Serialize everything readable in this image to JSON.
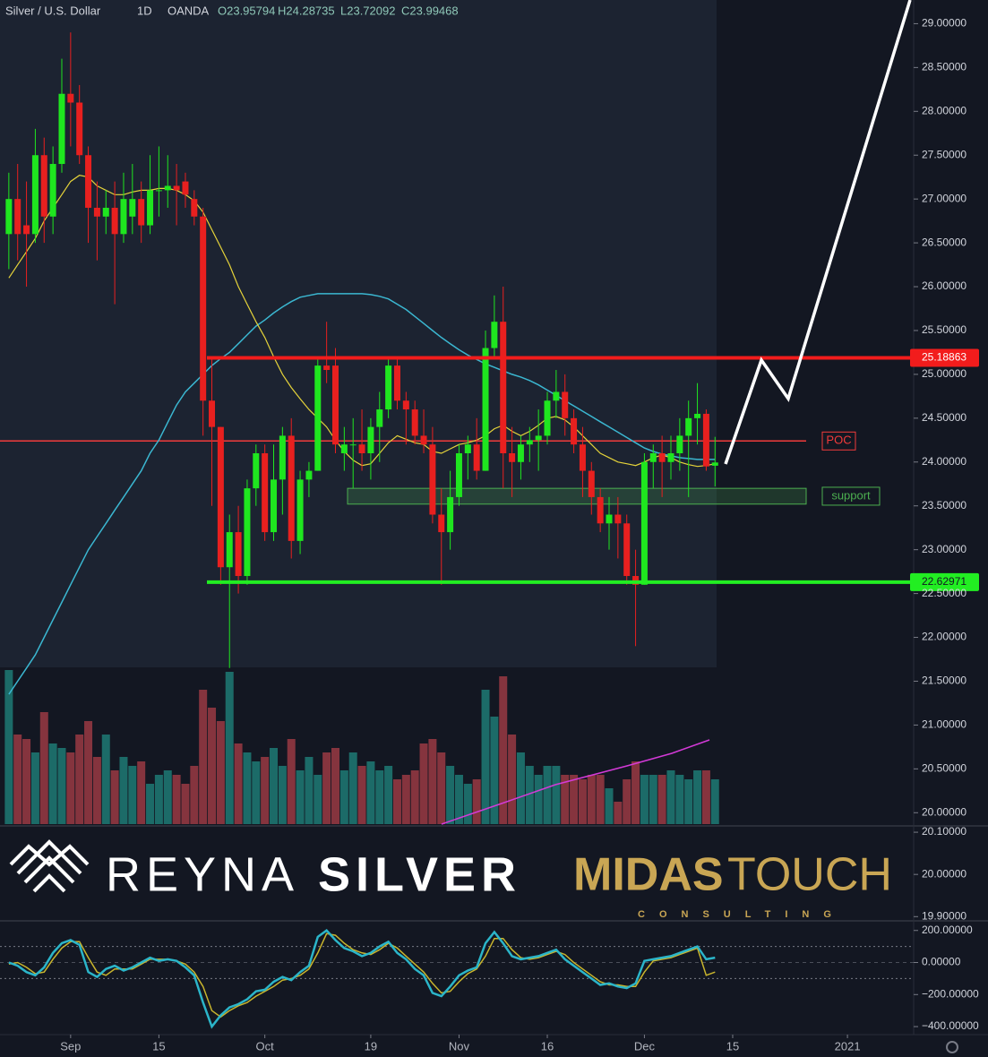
{
  "chart_data": {
    "type": "candlestick",
    "title": "Silver / U.S. Dollar",
    "interval": "1D",
    "source": "OANDA",
    "ohlc_legend": [
      "O23.95794",
      "H24.28735",
      "L23.72092",
      "C23.99468"
    ],
    "up_color": "#1fe61f",
    "down_color": "#e8201f",
    "xlim": [
      -1,
      102.5
    ],
    "xticks": [
      {
        "value": 7,
        "label": "Sep"
      },
      {
        "value": 17,
        "label": "15"
      },
      {
        "value": 29,
        "label": "Oct"
      },
      {
        "value": 41,
        "label": "19"
      },
      {
        "value": 51,
        "label": "Nov"
      },
      {
        "value": 61,
        "label": "16"
      },
      {
        "value": 72,
        "label": "Dec"
      },
      {
        "value": 82,
        "label": "15"
      },
      {
        "value": 95,
        "label": "2021"
      }
    ],
    "ylim": [
      19.87,
      29.27
    ],
    "yticks": [
      {
        "value": 20,
        "label": "20.00000"
      },
      {
        "value": 20.5,
        "label": "20.50000"
      },
      {
        "value": 21,
        "label": "21.00000"
      },
      {
        "value": 21.5,
        "label": "21.50000"
      },
      {
        "value": 22,
        "label": "22.00000"
      },
      {
        "value": 22.5,
        "label": "22.50000"
      },
      {
        "value": 23,
        "label": "23.00000"
      },
      {
        "value": 23.5,
        "label": "23.50000"
      },
      {
        "value": 24,
        "label": "24.00000"
      },
      {
        "value": 24.5,
        "label": "24.50000"
      },
      {
        "value": 25,
        "label": "25.00000"
      },
      {
        "value": 25.5,
        "label": "25.50000"
      },
      {
        "value": 26,
        "label": "26.00000"
      },
      {
        "value": 26.5,
        "label": "26.50000"
      },
      {
        "value": 27,
        "label": "27.00000"
      },
      {
        "value": 27.5,
        "label": "27.50000"
      },
      {
        "value": 28,
        "label": "28.00000"
      },
      {
        "value": 28.5,
        "label": "28.50000"
      },
      {
        "value": 29,
        "label": "29.00000"
      }
    ],
    "ohlc": [
      [
        26.6,
        27.3,
        26.2,
        27.0
      ],
      [
        27.0,
        27.4,
        26.3,
        26.6
      ],
      [
        26.7,
        27.2,
        26.0,
        26.6
      ],
      [
        26.6,
        27.8,
        26.5,
        27.5
      ],
      [
        27.5,
        27.7,
        26.5,
        26.8
      ],
      [
        26.8,
        27.6,
        26.6,
        27.4
      ],
      [
        27.4,
        28.6,
        27.3,
        28.2
      ],
      [
        28.2,
        28.9,
        27.6,
        28.1
      ],
      [
        28.1,
        28.3,
        27.4,
        27.5
      ],
      [
        27.5,
        27.6,
        26.5,
        26.9
      ],
      [
        26.9,
        27.2,
        26.3,
        26.8
      ],
      [
        26.8,
        27.1,
        26.6,
        26.9
      ],
      [
        26.9,
        27.2,
        25.8,
        26.6
      ],
      [
        26.6,
        27.3,
        26.5,
        27.0
      ],
      [
        26.8,
        27.4,
        26.6,
        27.0
      ],
      [
        27.0,
        27.2,
        26.5,
        26.7
      ],
      [
        26.7,
        27.5,
        26.6,
        27.1
      ],
      [
        27.1,
        27.6,
        26.8,
        27.1
      ],
      [
        27.1,
        27.5,
        26.9,
        27.15
      ],
      [
        27.15,
        27.4,
        26.7,
        27.1
      ],
      [
        27.2,
        27.3,
        26.9,
        27.05
      ],
      [
        27.0,
        27.1,
        26.7,
        26.8
      ],
      [
        26.8,
        26.9,
        24.3,
        24.7
      ],
      [
        24.7,
        25.2,
        23.5,
        24.4
      ],
      [
        24.4,
        24.4,
        22.6,
        22.8
      ],
      [
        22.8,
        23.4,
        21.65,
        23.2
      ],
      [
        23.2,
        23.5,
        22.5,
        22.7
      ],
      [
        22.7,
        23.8,
        22.6,
        23.7
      ],
      [
        23.7,
        24.2,
        23.5,
        24.1
      ],
      [
        24.1,
        24.2,
        23.1,
        23.2
      ],
      [
        23.2,
        24.2,
        23.1,
        23.8
      ],
      [
        23.8,
        24.4,
        23.4,
        24.3
      ],
      [
        24.3,
        24.5,
        22.9,
        23.1
      ],
      [
        23.1,
        23.9,
        22.95,
        23.8
      ],
      [
        23.8,
        24.0,
        23.6,
        23.9
      ],
      [
        23.9,
        25.2,
        23.9,
        25.1
      ],
      [
        25.1,
        25.6,
        24.9,
        25.05
      ],
      [
        25.1,
        25.3,
        24.1,
        24.2
      ],
      [
        24.1,
        24.4,
        23.9,
        24.2
      ],
      [
        24.2,
        24.5,
        23.7,
        24.2
      ],
      [
        24.2,
        24.6,
        23.9,
        24.1
      ],
      [
        24.1,
        24.5,
        23.8,
        24.4
      ],
      [
        24.4,
        24.8,
        24.0,
        24.6
      ],
      [
        24.6,
        25.2,
        24.5,
        25.1
      ],
      [
        25.1,
        25.2,
        24.6,
        24.7
      ],
      [
        24.7,
        24.8,
        24.2,
        24.6
      ],
      [
        24.6,
        24.7,
        24.2,
        24.3
      ],
      [
        24.3,
        24.6,
        24.1,
        24.2
      ],
      [
        24.2,
        24.4,
        23.3,
        23.4
      ],
      [
        23.4,
        23.7,
        22.6,
        23.2
      ],
      [
        23.2,
        23.9,
        23.0,
        23.6
      ],
      [
        23.6,
        24.2,
        23.5,
        24.1
      ],
      [
        24.1,
        24.3,
        23.8,
        24.2
      ],
      [
        24.2,
        24.5,
        23.8,
        23.9
      ],
      [
        23.9,
        25.5,
        23.9,
        25.3
      ],
      [
        25.3,
        25.9,
        25.2,
        25.6
      ],
      [
        25.6,
        26.0,
        23.7,
        24.1
      ],
      [
        24.1,
        24.4,
        23.6,
        24.0
      ],
      [
        24.0,
        24.3,
        23.8,
        24.2
      ],
      [
        24.2,
        24.4,
        24.0,
        24.25
      ],
      [
        24.25,
        24.6,
        23.9,
        24.3
      ],
      [
        24.3,
        24.8,
        24.2,
        24.7
      ],
      [
        24.7,
        25.05,
        24.5,
        24.8
      ],
      [
        24.8,
        25.0,
        24.3,
        24.5
      ],
      [
        24.5,
        24.6,
        24.1,
        24.2
      ],
      [
        24.2,
        24.4,
        23.6,
        23.9
      ],
      [
        23.9,
        24.0,
        23.4,
        23.6
      ],
      [
        23.6,
        23.7,
        23.2,
        23.3
      ],
      [
        23.3,
        23.6,
        23.0,
        23.4
      ],
      [
        23.4,
        23.6,
        22.9,
        23.3
      ],
      [
        23.3,
        23.4,
        22.6,
        22.7
      ],
      [
        22.7,
        23.0,
        21.9,
        22.6
      ],
      [
        22.6,
        24.1,
        22.6,
        24.0
      ],
      [
        24.0,
        24.2,
        23.7,
        24.1
      ],
      [
        24.1,
        24.3,
        23.6,
        24.0
      ],
      [
        24.0,
        24.3,
        23.8,
        24.1
      ],
      [
        24.1,
        24.5,
        23.9,
        24.3
      ],
      [
        24.3,
        24.7,
        23.6,
        24.5
      ],
      [
        24.5,
        24.9,
        24.2,
        24.55
      ],
      [
        24.55,
        24.6,
        23.9,
        23.95
      ],
      [
        23.95794,
        24.28735,
        23.72092,
        23.99468
      ]
    ],
    "fast_ma": {
      "color": "#e5d33a",
      "values": [
        26.1,
        26.25,
        26.4,
        26.55,
        26.75,
        26.9,
        27.05,
        27.2,
        27.27,
        27.25,
        27.15,
        27.1,
        27.05,
        27.05,
        27.08,
        27.1,
        27.1,
        27.12,
        27.12,
        27.1,
        27.05,
        26.98,
        26.85,
        26.65,
        26.45,
        26.25,
        26.0,
        25.8,
        25.6,
        25.42,
        25.2,
        25.0,
        24.85,
        24.72,
        24.6,
        24.5,
        24.4,
        24.25,
        24.12,
        24.02,
        23.96,
        23.98,
        24.1,
        24.22,
        24.3,
        24.26,
        24.22,
        24.2,
        24.12,
        24.1,
        24.15,
        24.2,
        24.22,
        24.25,
        24.3,
        24.38,
        24.42,
        24.35,
        24.3,
        24.35,
        24.42,
        24.5,
        24.52,
        24.48,
        24.4,
        24.3,
        24.2,
        24.1,
        24.05,
        24.0,
        23.98,
        23.96,
        24.0,
        24.05,
        24.08,
        24.05,
        24.0,
        23.97,
        23.95,
        23.96,
        23.98
      ]
    },
    "slow_ma": {
      "color": "#3bb7d1",
      "values": [
        21.35,
        21.5,
        21.65,
        21.8,
        22.0,
        22.2,
        22.4,
        22.6,
        22.8,
        23.0,
        23.15,
        23.3,
        23.45,
        23.6,
        23.75,
        23.9,
        24.1,
        24.25,
        24.45,
        24.65,
        24.8,
        24.9,
        25.0,
        25.1,
        25.18,
        25.25,
        25.35,
        25.45,
        25.55,
        25.62,
        25.7,
        25.77,
        25.83,
        25.88,
        25.9,
        25.92,
        25.92,
        25.92,
        25.92,
        25.92,
        25.92,
        25.91,
        25.89,
        25.86,
        25.8,
        25.74,
        25.66,
        25.58,
        25.5,
        25.42,
        25.35,
        25.28,
        25.22,
        25.17,
        25.12,
        25.08,
        25.04,
        25.0,
        24.97,
        24.93,
        24.88,
        24.82,
        24.76,
        24.7,
        24.64,
        24.58,
        24.52,
        24.46,
        24.4,
        24.34,
        24.28,
        24.22,
        24.16,
        24.12,
        24.09,
        24.07,
        24.05,
        24.04,
        24.03,
        24.03,
        24.03
      ]
    },
    "levels": [
      {
        "value": 25.18863,
        "label": "25.18863",
        "color": "#f21c1c"
      },
      {
        "value": 22.62971,
        "label": "22.62971",
        "color": "#22ee22"
      }
    ],
    "poc": {
      "text": "POC",
      "value": 24.24,
      "color": "#f23b3b"
    },
    "support": {
      "text": "support",
      "range": [
        23.52,
        23.7
      ],
      "color": "#4caf50"
    },
    "volume": {
      "up_color": "#1e7a74",
      "down_color": "#9a3a43",
      "values": [
        172,
        100,
        95,
        80,
        125,
        90,
        85,
        80,
        100,
        115,
        75,
        100,
        60,
        75,
        65,
        70,
        45,
        55,
        60,
        55,
        45,
        65,
        150,
        130,
        115,
        170,
        90,
        80,
        70,
        75,
        85,
        65,
        95,
        60,
        75,
        55,
        80,
        85,
        60,
        80,
        65,
        70,
        60,
        65,
        50,
        55,
        60,
        90,
        95,
        80,
        65,
        55,
        45,
        50,
        150,
        120,
        165,
        100,
        80,
        65,
        55,
        65,
        65,
        55,
        55,
        50,
        55,
        55,
        40,
        25,
        50,
        70,
        55,
        55,
        55,
        60,
        55,
        50,
        60,
        60,
        50
      ]
    },
    "logo_pane": {
      "ylim": [
        19.89,
        20.115
      ],
      "yticks": [
        {
          "value": 20.1,
          "label": "20.10000"
        },
        {
          "value": 20,
          "label": "20.00000"
        },
        {
          "value": 19.9,
          "label": "19.90000"
        }
      ],
      "brand_left": [
        "REYNA",
        "SILVER"
      ],
      "brand_right": [
        "MIDAS",
        "TOUCH"
      ],
      "tagline": "CONSULTING"
    },
    "oscillator": {
      "ylim": [
        -450,
        260
      ],
      "yticks": [
        {
          "value": 200,
          "label": "200.00000"
        },
        {
          "value": 0,
          "label": "0.00000"
        },
        {
          "value": -200,
          "label": "−200.00000"
        },
        {
          "value": -400,
          "label": "−400.00000"
        }
      ],
      "bands": [
        100,
        -100
      ],
      "series": [
        {
          "color": "#c9b52d",
          "values": [
            -10,
            0,
            -30,
            -70,
            -60,
            20,
            90,
            130,
            130,
            30,
            -60,
            -80,
            -40,
            -40,
            -40,
            -10,
            20,
            20,
            20,
            10,
            -10,
            -60,
            -150,
            -300,
            -340,
            -300,
            -270,
            -250,
            -210,
            -180,
            -150,
            -110,
            -100,
            -80,
            -40,
            60,
            180,
            170,
            120,
            80,
            60,
            50,
            80,
            120,
            90,
            40,
            -10,
            -60,
            -130,
            -190,
            -180,
            -120,
            -70,
            -40,
            40,
            150,
            150,
            80,
            30,
            20,
            30,
            50,
            70,
            50,
            0,
            -40,
            -80,
            -120,
            -140,
            -140,
            -150,
            -150,
            -60,
            10,
            20,
            30,
            50,
            70,
            90,
            -80,
            -60
          ]
        },
        {
          "color": "#2bb5c9",
          "values": [
            0,
            -20,
            -60,
            -80,
            -30,
            60,
            120,
            140,
            110,
            -60,
            -90,
            -40,
            -20,
            -50,
            -30,
            0,
            30,
            10,
            20,
            10,
            -30,
            -80,
            -250,
            -400,
            -330,
            -280,
            -260,
            -230,
            -180,
            -170,
            -120,
            -90,
            -110,
            -60,
            -20,
            160,
            200,
            140,
            90,
            70,
            40,
            60,
            100,
            130,
            60,
            20,
            -40,
            -80,
            -190,
            -210,
            -150,
            -80,
            -50,
            -30,
            120,
            190,
            120,
            40,
            20,
            30,
            40,
            60,
            80,
            20,
            -20,
            -60,
            -100,
            -140,
            -130,
            -150,
            -160,
            -130,
            10,
            20,
            30,
            40,
            60,
            80,
            100,
            20,
            30
          ]
        }
      ]
    }
  }
}
